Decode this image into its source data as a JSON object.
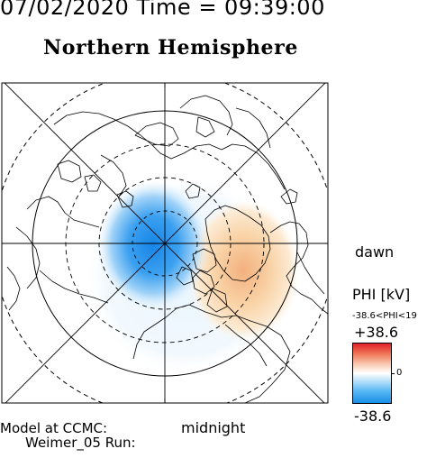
{
  "header": {
    "timestamp": "07/02/2020 Time = 09:39:00",
    "hemisphere": "Northern Hemisphere"
  },
  "map": {
    "projection": "polar-stereographic",
    "pole": "north",
    "grid": "latitude circles and meridian lines",
    "dawn_label": "dawn",
    "midnight_label": "midnight"
  },
  "potential": {
    "blue_cell": "negative potential cell on the midnight-dusk side",
    "red_cell": "positive potential cell on the dawn side"
  },
  "colorbar": {
    "title": "PHI [kV]",
    "range_text": "-38.6<PHI<19",
    "max_label": "+38.6",
    "zero_label": "0",
    "min_label": "-38.6",
    "colors": {
      "max": "#e0202a",
      "mid": "#ffffff",
      "min": "#1a8ee6"
    }
  },
  "footer": {
    "model_line": "Model at CCMC:",
    "run_line": "Weimer_05 Run:"
  }
}
